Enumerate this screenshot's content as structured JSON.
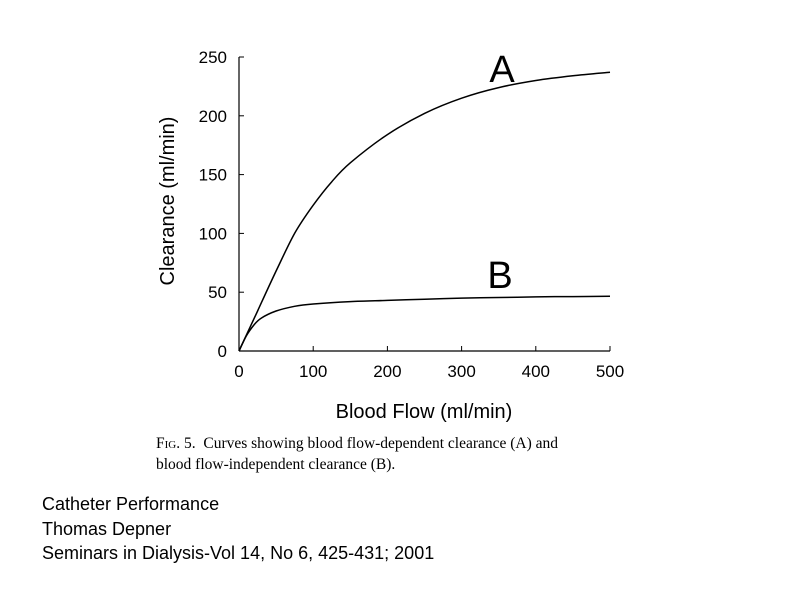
{
  "chart_data": {
    "type": "line",
    "xlabel": "Blood Flow (ml/min)",
    "ylabel": "Clearance (ml/min)",
    "xlim": [
      0,
      500
    ],
    "ylim": [
      0,
      250
    ],
    "xticks": [
      "0",
      "100",
      "200",
      "300",
      "400",
      "500"
    ],
    "yticks": [
      "0",
      "50",
      "100",
      "150",
      "200",
      "250"
    ],
    "grid": false,
    "series": [
      {
        "name": "A",
        "x": [
          0,
          25,
          50,
          75,
          100,
          125,
          150,
          200,
          250,
          300,
          350,
          400,
          450,
          500
        ],
        "y": [
          0,
          34,
          68,
          100,
          124,
          144,
          160,
          184,
          202,
          215,
          224,
          230,
          234,
          237
        ]
      },
      {
        "name": "B",
        "x": [
          0,
          10,
          20,
          30,
          50,
          75,
          100,
          150,
          200,
          250,
          300,
          350,
          400,
          450,
          500
        ],
        "y": [
          0,
          13,
          22,
          28,
          34,
          38,
          40,
          42,
          43,
          44,
          45,
          45.5,
          46,
          46.3,
          46.5
        ]
      }
    ]
  },
  "caption": {
    "fig_label": "Fig. 5.",
    "line1": "Curves showing blood flow-dependent clearance (A) and",
    "line2": "blood flow-independent clearance (B)."
  },
  "citation": {
    "line1": "Catheter Performance",
    "line2": "Thomas Depner",
    "line3": "Seminars in Dialysis-Vol 14, No 6, 425-431; 2001"
  }
}
